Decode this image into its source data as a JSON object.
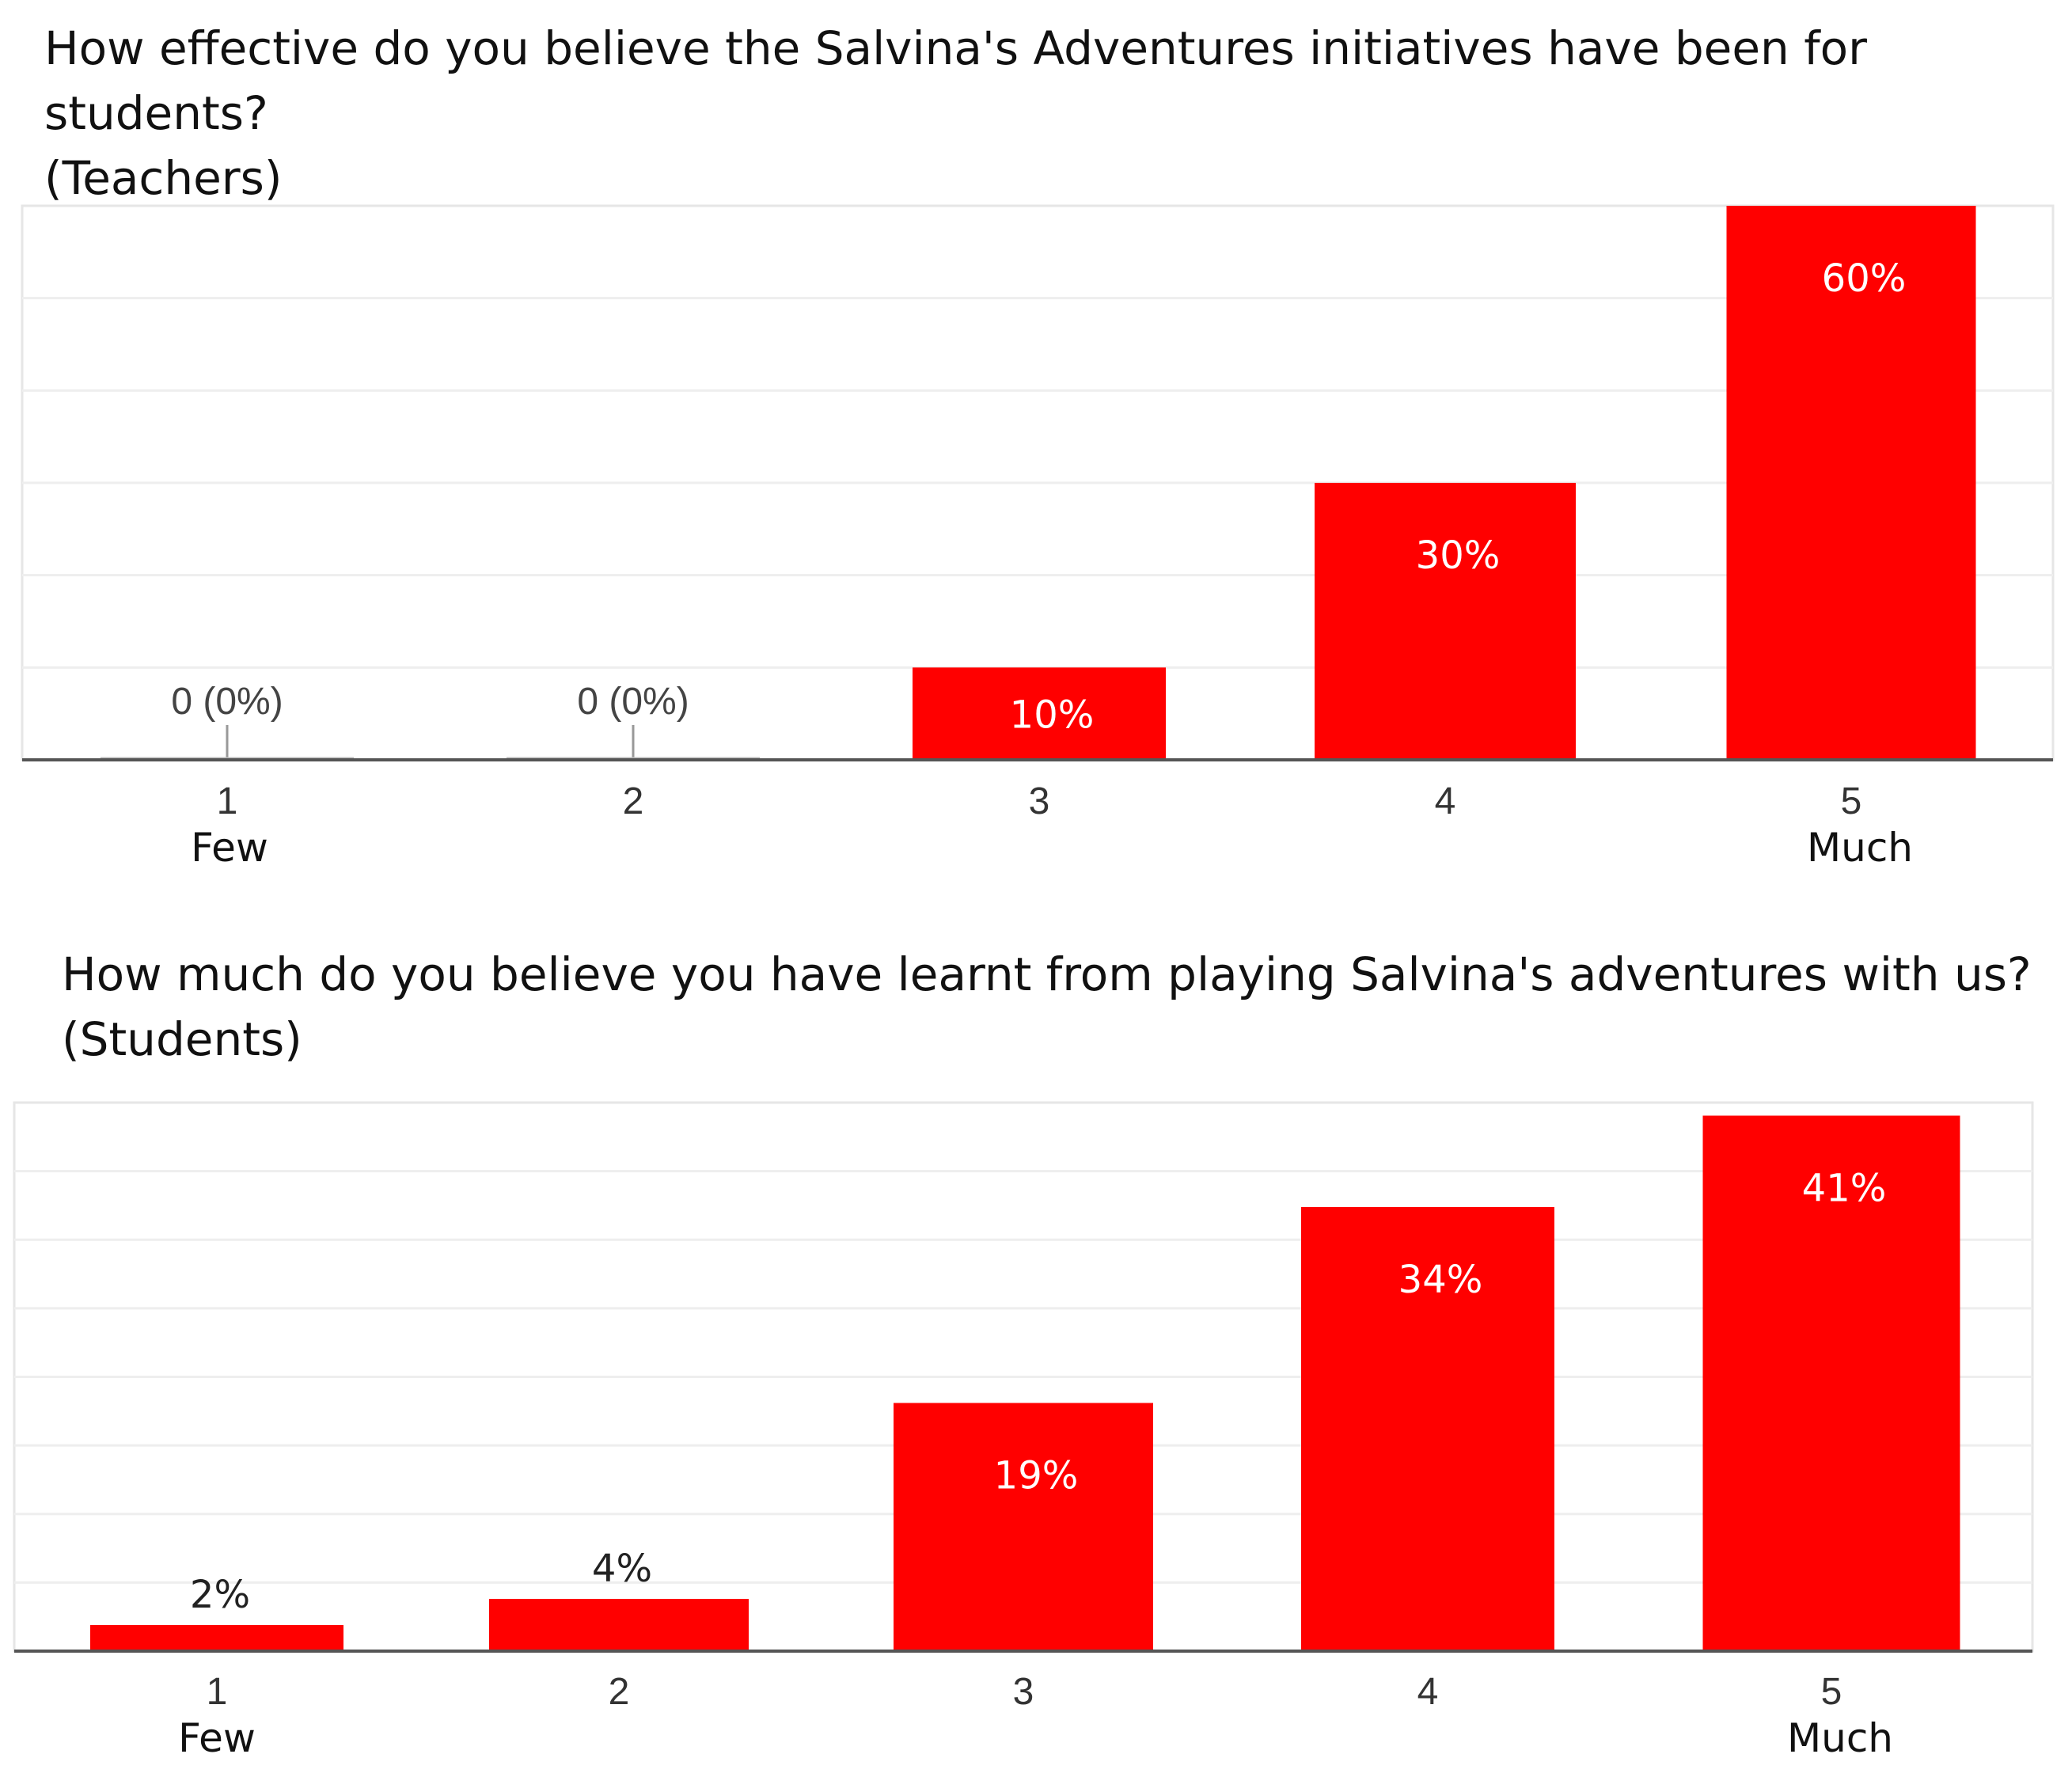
{
  "chart_data": [
    {
      "type": "bar",
      "title": "How effective do you believe the Salvina's Adventures initiatives have been for students?\n(Teachers)",
      "categories": [
        "1",
        "2",
        "3",
        "4",
        "5"
      ],
      "values": [
        0,
        0,
        10,
        30,
        60
      ],
      "data_labels": [
        "0 (0%)",
        "0 (0%)",
        "10%",
        "30%",
        "60%"
      ],
      "anchor_labels": {
        "low": "Few",
        "high": "Much"
      },
      "ylim": [
        0,
        60
      ],
      "grid": true,
      "bar_color": "#ff0000"
    },
    {
      "type": "bar",
      "title": "How much do you believe you have learnt from playing Salvina's adventures with us?\n(Students)",
      "categories": [
        "1",
        "2",
        "3",
        "4",
        "5"
      ],
      "values": [
        2,
        4,
        19,
        34,
        41
      ],
      "data_labels": [
        "2%",
        "4%",
        "19%",
        "34%",
        "41%"
      ],
      "anchor_labels": {
        "low": "Few",
        "high": "Much"
      },
      "ylim": [
        0,
        42
      ],
      "grid": true,
      "bar_color": "#ff0000"
    }
  ]
}
